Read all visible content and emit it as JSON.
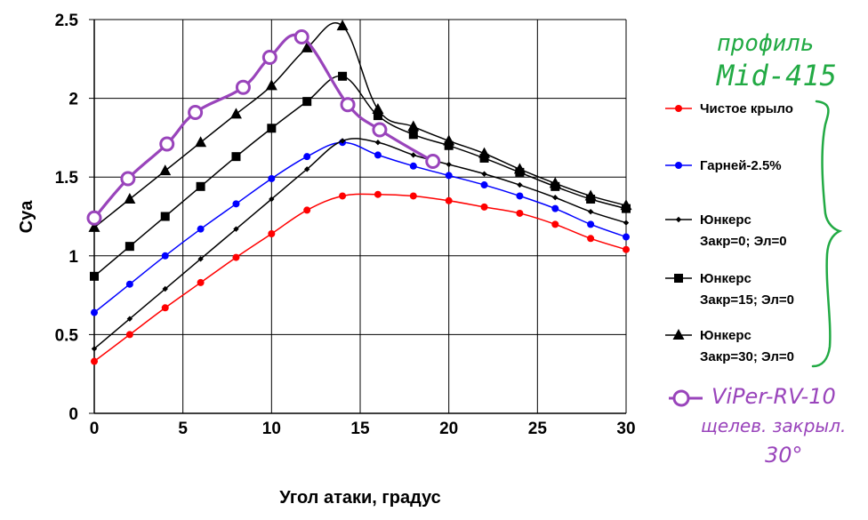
{
  "chart_data": {
    "type": "line",
    "xlabel": "Угол атаки, градус",
    "ylabel": "Cya",
    "xlim": [
      0,
      30
    ],
    "ylim": [
      0,
      2.5
    ],
    "xticks": [
      "0",
      "5",
      "10",
      "15",
      "20",
      "25",
      "30"
    ],
    "yticks": [
      "0",
      "0.5",
      "1",
      "1.5",
      "2",
      "2.5"
    ],
    "grid": true,
    "legend_position": "right",
    "series": [
      {
        "name": "Чистое крыло",
        "name_lines": [
          "Чистое крыло"
        ],
        "color": "#ff0000",
        "marker": "circle",
        "x": [
          0,
          2,
          4,
          6,
          8,
          10,
          12,
          14,
          16,
          18,
          20,
          22,
          24,
          26,
          28,
          30
        ],
        "y": [
          0.33,
          0.5,
          0.67,
          0.83,
          0.99,
          1.14,
          1.29,
          1.38,
          1.39,
          1.38,
          1.35,
          1.31,
          1.27,
          1.2,
          1.11,
          1.04
        ]
      },
      {
        "name": "Гарней-2.5%",
        "name_lines": [
          "Гарней-2.5%"
        ],
        "color": "#0000ff",
        "marker": "circle",
        "x": [
          0,
          2,
          4,
          6,
          8,
          10,
          12,
          14,
          16,
          18,
          20,
          22,
          24,
          26,
          28,
          30
        ],
        "y": [
          0.64,
          0.82,
          1.0,
          1.17,
          1.33,
          1.49,
          1.63,
          1.72,
          1.64,
          1.57,
          1.51,
          1.45,
          1.38,
          1.3,
          1.2,
          1.12
        ]
      },
      {
        "name": "Юнкерс Закр=0; Эл=0",
        "name_lines": [
          "Юнкерс",
          "Закр=0; Эл=0"
        ],
        "color": "#000000",
        "marker": "diamond",
        "x": [
          0,
          2,
          4,
          6,
          8,
          10,
          12,
          14,
          16,
          18,
          20,
          22,
          24,
          26,
          28,
          30
        ],
        "y": [
          0.41,
          0.6,
          0.79,
          0.98,
          1.17,
          1.36,
          1.55,
          1.73,
          1.72,
          1.64,
          1.58,
          1.52,
          1.45,
          1.37,
          1.28,
          1.21
        ]
      },
      {
        "name": "Юнкерс Закр=15; Эл=0",
        "name_lines": [
          "Юнкерс",
          "Закр=15; Эл=0"
        ],
        "color": "#000000",
        "marker": "square",
        "x": [
          0,
          2,
          4,
          6,
          8,
          10,
          12,
          14,
          16,
          18,
          20,
          22,
          24,
          26,
          28,
          30
        ],
        "y": [
          0.87,
          1.06,
          1.25,
          1.44,
          1.63,
          1.81,
          1.98,
          2.14,
          1.89,
          1.77,
          1.7,
          1.62,
          1.53,
          1.44,
          1.36,
          1.3
        ]
      },
      {
        "name": "Юнкерс Закр=30; Эл=0",
        "name_lines": [
          "Юнкерс",
          "Закр=30; Эл=0"
        ],
        "color": "#000000",
        "marker": "triangle",
        "x": [
          0,
          2,
          4,
          6,
          8,
          10,
          12,
          14,
          16,
          18,
          20,
          22,
          24,
          26,
          28,
          30
        ],
        "y": [
          1.18,
          1.36,
          1.54,
          1.72,
          1.9,
          2.08,
          2.32,
          2.46,
          1.93,
          1.82,
          1.73,
          1.65,
          1.55,
          1.46,
          1.38,
          1.32
        ]
      },
      {
        "name": "ViPer-RV-10 щелев. закрыл. 30°",
        "name_lines": [
          "ViPer-RV-10",
          "щелев. закрыл.",
          "30°"
        ],
        "color": "#9944bb",
        "marker": "open-circle",
        "x": [
          0,
          1.9,
          4.1,
          5.7,
          8.4,
          9.9,
          11.7,
          14.3,
          16.1,
          19.1
        ],
        "y": [
          1.24,
          1.49,
          1.71,
          1.91,
          2.07,
          2.26,
          2.39,
          1.96,
          1.8,
          1.6
        ]
      }
    ],
    "annotations": {
      "profile_note": [
        "профиль",
        "Mid-415"
      ]
    }
  }
}
